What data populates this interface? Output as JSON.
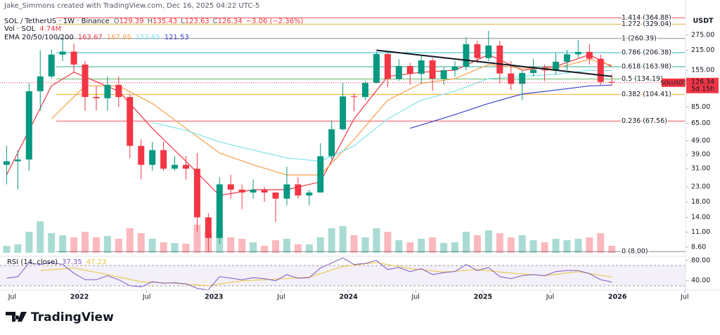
{
  "chart_data": {
    "type": "candlestick",
    "header": {
      "credit": "Jake_Simmons created with TradingView.com, Dec 16, 2025 04:22 UTC-5",
      "symbol": "SOL / TetherUS · 1W · Binance",
      "ohlc": [
        {
          "key": "O",
          "value": "129.39"
        },
        {
          "key": "H",
          "value": "135.43"
        },
        {
          "key": "L",
          "value": "123.63"
        },
        {
          "key": "C",
          "value": "126.34"
        }
      ],
      "change": "−3.06 (−2.36%)",
      "volume_title": "Vol · SOL",
      "volume_value": "4.74M",
      "ema_title": "EMA 20/50/100/200",
      "rsi_title": "RSI (14, close)",
      "currency": "USDT"
    },
    "footer": {
      "brand": "TradingView"
    },
    "log_scale": true,
    "ylim": [
      7.4,
      411
    ],
    "yticks": [
      {
        "value": 275,
        "label": "275.00"
      },
      {
        "value": 215,
        "label": "215.00"
      },
      {
        "value": 155,
        "label": "155.00"
      },
      {
        "value": 85,
        "label": "85.00"
      },
      {
        "value": 65,
        "label": "65.00"
      },
      {
        "value": 49,
        "label": "49.00"
      },
      {
        "value": 39,
        "label": "39.00"
      },
      {
        "value": 31,
        "label": "31.00"
      },
      {
        "value": 23,
        "label": "23.00"
      },
      {
        "value": 18,
        "label": "18.00"
      },
      {
        "value": 14,
        "label": "14.00"
      },
      {
        "value": 11,
        "label": "11.00"
      },
      {
        "value": 8.6,
        "label": "8.60"
      }
    ],
    "xticks": [
      {
        "value": "2021-07",
        "label": "Jul"
      },
      {
        "value": "2022-01",
        "label": "2022"
      },
      {
        "value": "2022-07",
        "label": "Jul"
      },
      {
        "value": "2023-01",
        "label": "2023"
      },
      {
        "value": "2023-07",
        "label": "Jul"
      },
      {
        "value": "2024-01",
        "label": "2024"
      },
      {
        "value": "2024-07",
        "label": "Jul"
      },
      {
        "value": "2025-01",
        "label": "2025"
      },
      {
        "value": "2025-07",
        "label": "Jul"
      },
      {
        "value": "2026-01",
        "label": "2026"
      },
      {
        "value": "2026-07",
        "label": "Jul"
      }
    ],
    "up_color": "#089981",
    "down_color": "#f23645",
    "categories": [
      "2021-06",
      "2021-07",
      "2021-08",
      "2021-09",
      "2021-10",
      "2021-11",
      "2021-12",
      "2022-01",
      "2022-02",
      "2022-03",
      "2022-04",
      "2022-05",
      "2022-06",
      "2022-07",
      "2022-08",
      "2022-09",
      "2022-10",
      "2022-11",
      "2022-12",
      "2023-01",
      "2023-02",
      "2023-03",
      "2023-04",
      "2023-05",
      "2023-06",
      "2023-07",
      "2023-08",
      "2023-09",
      "2023-10",
      "2023-11",
      "2023-12",
      "2024-01",
      "2024-02",
      "2024-03",
      "2024-04",
      "2024-05",
      "2024-06",
      "2024-07",
      "2024-08",
      "2024-09",
      "2024-10",
      "2024-11",
      "2024-12",
      "2025-01",
      "2025-02",
      "2025-03",
      "2025-04",
      "2025-05",
      "2025-06",
      "2025-07",
      "2025-08",
      "2025-09",
      "2025-10",
      "2025-11",
      "2025-12"
    ],
    "open": [
      33,
      35,
      36,
      110,
      140,
      200,
      210,
      170,
      100,
      98,
      122,
      100,
      45,
      33,
      42,
      31,
      33,
      31,
      14,
      10,
      24,
      22,
      21,
      22,
      21,
      19,
      24,
      20,
      21,
      38,
      59,
      101,
      100,
      126,
      202,
      134,
      166,
      146,
      182,
      135,
      155,
      165,
      237,
      189,
      232,
      147,
      124,
      148,
      156,
      155,
      178,
      201,
      209,
      187,
      128
    ],
    "high": [
      45,
      42,
      125,
      215,
      218,
      260,
      240,
      180,
      120,
      140,
      140,
      105,
      50,
      48,
      48,
      38,
      38,
      40,
      15,
      27,
      28,
      24,
      26,
      23,
      21,
      32,
      27,
      22,
      47,
      68,
      126,
      106,
      130,
      210,
      205,
      185,
      175,
      195,
      190,
      162,
      180,
      265,
      250,
      295,
      250,
      180,
      155,
      187,
      170,
      205,
      216,
      253,
      237,
      200,
      145
    ],
    "low": [
      24,
      22,
      30,
      80,
      135,
      180,
      150,
      80,
      80,
      80,
      85,
      37,
      26,
      30,
      30,
      30,
      26,
      11,
      8,
      9,
      19,
      16,
      19,
      18,
      13,
      17,
      19,
      17,
      21,
      36,
      58,
      79,
      95,
      125,
      117,
      130,
      122,
      125,
      110,
      122,
      140,
      155,
      175,
      180,
      125,
      112,
      95,
      140,
      130,
      145,
      155,
      190,
      170,
      122,
      121
    ],
    "close": [
      35,
      36,
      110,
      140,
      200,
      210,
      170,
      100,
      98,
      122,
      100,
      45,
      33,
      42,
      31,
      33,
      31,
      14,
      10,
      24,
      22,
      21,
      22,
      21,
      19,
      24,
      20,
      21,
      38,
      59,
      101,
      100,
      126,
      202,
      134,
      166,
      146,
      182,
      135,
      155,
      165,
      237,
      189,
      232,
      147,
      124,
      148,
      156,
      155,
      178,
      201,
      209,
      187,
      128,
      126.34
    ],
    "volume": [
      10,
      12,
      30,
      45,
      28,
      25,
      22,
      30,
      22,
      24,
      20,
      35,
      28,
      20,
      15,
      14,
      13,
      40,
      30,
      35,
      22,
      20,
      15,
      10,
      18,
      20,
      12,
      12,
      22,
      35,
      38,
      25,
      22,
      35,
      30,
      18,
      15,
      20,
      22,
      14,
      15,
      30,
      25,
      32,
      28,
      22,
      25,
      18,
      15,
      20,
      18,
      20,
      22,
      28,
      10
    ],
    "ema": [
      {
        "name": "EMA 20",
        "color": "#f23645",
        "x": [
          "2021-06",
          "2021-10",
          "2021-12",
          "2022-04",
          "2022-07",
          "2022-10",
          "2023-01",
          "2023-04",
          "2023-07",
          "2023-10",
          "2024-01",
          "2024-04",
          "2024-07",
          "2024-10",
          "2025-01",
          "2025-04",
          "2025-07",
          "2025-10",
          "2025-12"
        ],
        "values": [
          28,
          120,
          150,
          110,
          60,
          35,
          20,
          22,
          22,
          25,
          70,
          140,
          150,
          155,
          200,
          155,
          165,
          200,
          163.67
        ]
      },
      {
        "name": "EMA 50",
        "color": "#f5a04a",
        "x": [
          "2021-10",
          "2022-01",
          "2022-04",
          "2022-07",
          "2022-10",
          "2023-01",
          "2023-04",
          "2023-07",
          "2023-10",
          "2024-01",
          "2024-04",
          "2024-07",
          "2024-10",
          "2025-01",
          "2025-04",
          "2025-07",
          "2025-10",
          "2025-12"
        ],
        "values": [
          70,
          120,
          120,
          90,
          60,
          40,
          33,
          28,
          28,
          50,
          95,
          125,
          135,
          170,
          160,
          160,
          185,
          167.95
        ]
      },
      {
        "name": "EMA 100",
        "color": "#7fe3ea",
        "x": [
          "2022-07",
          "2022-10",
          "2023-01",
          "2023-04",
          "2023-07",
          "2023-10",
          "2024-01",
          "2024-04",
          "2024-07",
          "2024-10",
          "2025-01",
          "2025-04",
          "2025-07",
          "2025-10",
          "2025-12"
        ],
        "values": [
          66,
          58,
          48,
          42,
          37,
          35,
          45,
          70,
          95,
          110,
          135,
          140,
          145,
          155,
          153.65
        ]
      },
      {
        "name": "EMA 200",
        "color": "#4040c8",
        "x": [
          "2024-06",
          "2024-10",
          "2025-01",
          "2025-04",
          "2025-07",
          "2025-10",
          "2025-12"
        ],
        "values": [
          60,
          75,
          90,
          105,
          112,
          120,
          121.53
        ]
      }
    ],
    "fibs": [
      {
        "label": "1.414 (364.88)",
        "value": 364.88,
        "color": "#f23645"
      },
      {
        "label": "1.272 (329.04)",
        "value": 329.04,
        "color": "#d4a017"
      },
      {
        "label": "1 (260.39)",
        "value": 260.39,
        "color": "#787b86"
      },
      {
        "label": "0.786 (206.38)",
        "value": 206.38,
        "color": "#00acc1"
      },
      {
        "label": "0.618 (163.98)",
        "value": 163.98,
        "color": "#089981"
      },
      {
        "label": "0.5 (134.19)",
        "value": 134.19,
        "color": "#4caf50"
      },
      {
        "label": "0.382 (104.41)",
        "value": 104.41,
        "color": "#ff9800"
      },
      {
        "label": "0.236 (67.56)",
        "value": 67.56,
        "color": "#f23645"
      },
      {
        "label": "0 (8.00)",
        "value": 8.0,
        "color": "#787b86"
      }
    ],
    "trendline": {
      "color": "#131722",
      "x": [
        "2024-03",
        "2025-12"
      ],
      "values": [
        215,
        140
      ]
    },
    "last": {
      "symbol": "SOLUSDT",
      "countdown": "5d 15h",
      "color": "#f23645"
    },
    "rsi": {
      "ylim": [
        23,
        88
      ],
      "yticks": [
        {
          "value": 80,
          "label": "80.00"
        },
        {
          "value": 40,
          "label": "40.00"
        }
      ],
      "band": [
        30,
        70
      ],
      "color": "#7e57c2",
      "values": [
        45,
        48,
        75,
        72,
        76,
        72,
        55,
        42,
        42,
        50,
        42,
        30,
        28,
        38,
        35,
        36,
        34,
        25,
        22,
        48,
        45,
        42,
        46,
        44,
        40,
        52,
        45,
        46,
        65,
        75,
        85,
        72,
        74,
        80,
        62,
        66,
        58,
        64,
        52,
        56,
        58,
        72,
        60,
        66,
        48,
        44,
        50,
        52,
        50,
        58,
        60,
        60,
        54,
        42,
        37.35
      ],
      "ma": {
        "color": "#e8c33a",
        "x": [
          "2021-09",
          "2021-12",
          "2022-03",
          "2022-06",
          "2022-09",
          "2022-12",
          "2023-03",
          "2023-06",
          "2023-09",
          "2023-12",
          "2024-03",
          "2024-06",
          "2024-09",
          "2024-12",
          "2025-03",
          "2025-06",
          "2025-09",
          "2025-12"
        ],
        "values": [
          60,
          65,
          52,
          38,
          35,
          30,
          40,
          43,
          47,
          68,
          76,
          64,
          57,
          62,
          55,
          50,
          58,
          47.23
        ]
      }
    }
  }
}
